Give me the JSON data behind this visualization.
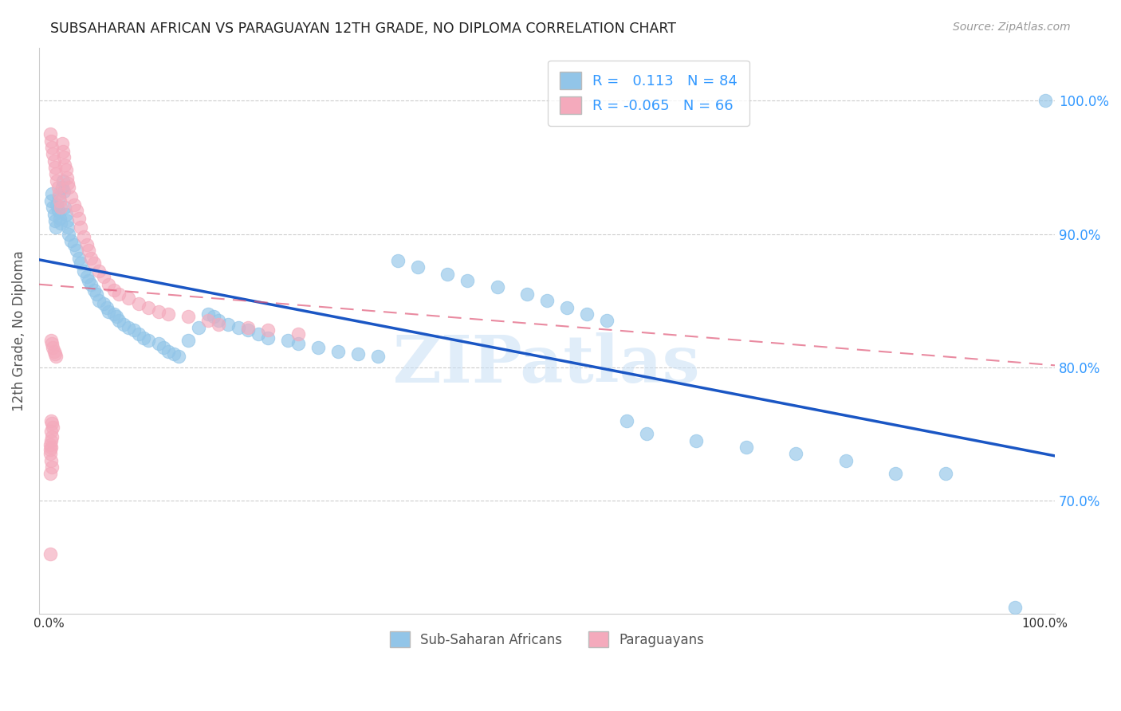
{
  "title": "SUBSAHARAN AFRICAN VS PARAGUAYAN 12TH GRADE, NO DIPLOMA CORRELATION CHART",
  "source": "Source: ZipAtlas.com",
  "ylabel": "12th Grade, No Diploma",
  "ytick_labels": [
    "100.0%",
    "90.0%",
    "80.0%",
    "70.0%"
  ],
  "ytick_values": [
    1.0,
    0.9,
    0.8,
    0.7
  ],
  "xlim": [
    -0.01,
    1.01
  ],
  "ylim": [
    0.615,
    1.04
  ],
  "legend_r1": "R =   0.113",
  "legend_n1": "N = 84",
  "legend_r2": "R = -0.065",
  "legend_n2": "N = 66",
  "blue_color": "#92C5E8",
  "pink_color": "#F4AABC",
  "line_blue": "#1A56C4",
  "line_pink": "#E05878",
  "background": "#FFFFFF",
  "blue_scatter_x": [
    0.002,
    0.003,
    0.004,
    0.005,
    0.006,
    0.007,
    0.008,
    0.009,
    0.01,
    0.011,
    0.012,
    0.013,
    0.014,
    0.015,
    0.016,
    0.017,
    0.018,
    0.019,
    0.02,
    0.022,
    0.025,
    0.028,
    0.03,
    0.032,
    0.035,
    0.038,
    0.04,
    0.042,
    0.045,
    0.048,
    0.05,
    0.055,
    0.058,
    0.06,
    0.065,
    0.068,
    0.07,
    0.075,
    0.08,
    0.085,
    0.09,
    0.095,
    0.1,
    0.11,
    0.115,
    0.12,
    0.125,
    0.13,
    0.14,
    0.15,
    0.16,
    0.165,
    0.17,
    0.18,
    0.19,
    0.2,
    0.21,
    0.22,
    0.24,
    0.25,
    0.27,
    0.29,
    0.31,
    0.33,
    0.35,
    0.37,
    0.4,
    0.42,
    0.45,
    0.48,
    0.5,
    0.52,
    0.54,
    0.56,
    0.58,
    0.6,
    0.65,
    0.7,
    0.75,
    0.8,
    0.85,
    0.9,
    0.97,
    1.0
  ],
  "blue_scatter_y": [
    0.925,
    0.93,
    0.92,
    0.915,
    0.91,
    0.905,
    0.922,
    0.918,
    0.928,
    0.912,
    0.908,
    0.935,
    0.94,
    0.932,
    0.92,
    0.915,
    0.91,
    0.905,
    0.9,
    0.895,
    0.892,
    0.888,
    0.882,
    0.878,
    0.872,
    0.868,
    0.865,
    0.862,
    0.858,
    0.855,
    0.85,
    0.848,
    0.845,
    0.842,
    0.84,
    0.838,
    0.835,
    0.832,
    0.83,
    0.828,
    0.825,
    0.822,
    0.82,
    0.818,
    0.815,
    0.812,
    0.81,
    0.808,
    0.82,
    0.83,
    0.84,
    0.838,
    0.835,
    0.832,
    0.83,
    0.828,
    0.825,
    0.822,
    0.82,
    0.818,
    0.815,
    0.812,
    0.81,
    0.808,
    0.88,
    0.875,
    0.87,
    0.865,
    0.86,
    0.855,
    0.85,
    0.845,
    0.84,
    0.835,
    0.76,
    0.75,
    0.745,
    0.74,
    0.735,
    0.73,
    0.72,
    0.72,
    0.62,
    1.0
  ],
  "pink_scatter_x": [
    0.001,
    0.002,
    0.003,
    0.004,
    0.005,
    0.006,
    0.007,
    0.008,
    0.009,
    0.01,
    0.011,
    0.012,
    0.013,
    0.014,
    0.015,
    0.016,
    0.017,
    0.018,
    0.019,
    0.02,
    0.022,
    0.025,
    0.028,
    0.03,
    0.032,
    0.035,
    0.038,
    0.04,
    0.042,
    0.045,
    0.05,
    0.055,
    0.06,
    0.065,
    0.07,
    0.08,
    0.09,
    0.1,
    0.11,
    0.12,
    0.14,
    0.16,
    0.17,
    0.2,
    0.22,
    0.25,
    0.002,
    0.003,
    0.004,
    0.005,
    0.006,
    0.007,
    0.002,
    0.003,
    0.004,
    0.002,
    0.003,
    0.002,
    0.001,
    0.002,
    0.001,
    0.001,
    0.002,
    0.003,
    0.001,
    0.001
  ],
  "pink_scatter_y": [
    0.975,
    0.97,
    0.965,
    0.96,
    0.955,
    0.95,
    0.945,
    0.94,
    0.935,
    0.93,
    0.925,
    0.92,
    0.968,
    0.962,
    0.958,
    0.952,
    0.948,
    0.942,
    0.938,
    0.935,
    0.928,
    0.922,
    0.918,
    0.912,
    0.905,
    0.898,
    0.892,
    0.888,
    0.882,
    0.878,
    0.872,
    0.868,
    0.862,
    0.858,
    0.855,
    0.852,
    0.848,
    0.845,
    0.842,
    0.84,
    0.838,
    0.835,
    0.832,
    0.83,
    0.828,
    0.825,
    0.82,
    0.818,
    0.815,
    0.812,
    0.81,
    0.808,
    0.76,
    0.758,
    0.755,
    0.752,
    0.748,
    0.745,
    0.742,
    0.74,
    0.738,
    0.735,
    0.73,
    0.725,
    0.72,
    0.66
  ]
}
